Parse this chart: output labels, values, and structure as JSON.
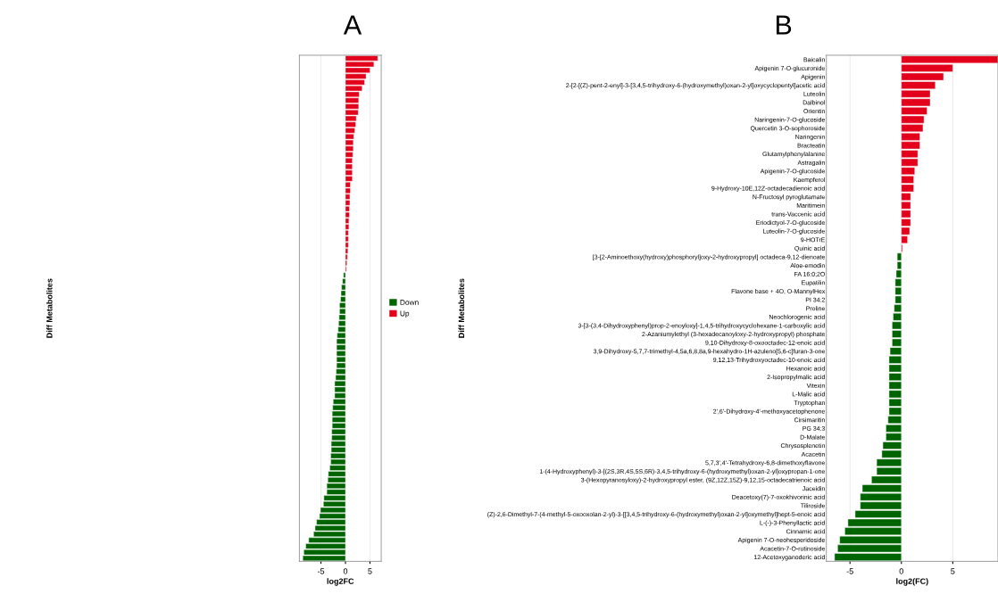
{
  "chart_data": [
    {
      "type": "bar",
      "orientation": "horizontal",
      "title": "A",
      "xlabel": "log2FC",
      "ylabel": "Diff Metabolites",
      "xlim": [
        -9.4,
        7.3
      ],
      "xticks": [
        -5,
        0,
        5
      ],
      "grid": "x",
      "legend": "right",
      "categories": [
        null,
        null,
        null,
        null,
        null,
        null,
        null,
        null,
        null,
        null,
        null,
        null,
        null,
        null,
        null,
        null,
        null,
        null,
        null,
        null,
        null,
        null,
        null,
        null,
        null,
        null,
        null,
        null,
        null,
        null,
        null,
        null,
        null,
        null,
        null,
        null,
        null,
        null,
        null,
        null,
        null,
        null,
        null,
        null,
        null,
        null,
        null,
        null,
        null,
        null,
        null,
        null,
        null,
        null,
        null,
        null,
        null,
        null,
        null,
        null,
        null,
        null,
        null,
        null,
        null,
        null,
        null,
        null,
        null,
        null,
        null,
        null,
        null,
        null,
        null,
        null,
        null,
        null,
        null,
        null,
        null,
        null,
        null,
        null
      ],
      "series": [
        {
          "name": "Down",
          "color": "#006400",
          "values": [
            null,
            null,
            null,
            null,
            null,
            null,
            null,
            null,
            null,
            null,
            null,
            null,
            null,
            null,
            null,
            null,
            null,
            null,
            null,
            null,
            null,
            null,
            null,
            null,
            null,
            null,
            null,
            null,
            null,
            null,
            null,
            null,
            null,
            null,
            null,
            null,
            -0.4,
            -0.6,
            -0.8,
            -0.9,
            -1.0,
            -1.2,
            -1.2,
            -1.3,
            -1.4,
            -1.5,
            -1.7,
            -1.8,
            -1.8,
            -1.8,
            -1.8,
            -1.8,
            -1.9,
            -2.0,
            -2.2,
            -2.2,
            -2.2,
            -2.5,
            -2.6,
            -2.7,
            -2.7,
            -2.7,
            -2.8,
            -2.8,
            -2.9,
            -2.9,
            -3.0,
            -3.0,
            -3.2,
            -3.5,
            -3.6,
            -3.8,
            -3.8,
            -4.4,
            -4.5,
            -5.1,
            -5.3,
            -5.9,
            -6.2,
            -6.5,
            -7.5,
            -8.1,
            -8.5,
            -8.7
          ]
        },
        {
          "name": "Up",
          "color": "#e3001b",
          "values": [
            6.6,
            5.8,
            5.0,
            4.2,
            3.9,
            3.4,
            2.8,
            2.7,
            2.7,
            2.6,
            2.2,
            2.1,
            1.9,
            1.7,
            1.6,
            1.6,
            1.5,
            1.4,
            1.4,
            1.4,
            1.4,
            1.0,
            1.0,
            0.9,
            0.9,
            0.8,
            0.8,
            0.7,
            0.7,
            0.6,
            0.6,
            0.6,
            0.5,
            0.4,
            0.3,
            0.2,
            null,
            null,
            null,
            null,
            null,
            null,
            null,
            null,
            null,
            null,
            null,
            null,
            null,
            null,
            null,
            null,
            null,
            null,
            null,
            null,
            null,
            null,
            null,
            null,
            null,
            null,
            null,
            null,
            null,
            null,
            null,
            null,
            null,
            null,
            null,
            null,
            null,
            null,
            null,
            null,
            null,
            null,
            null,
            null,
            null,
            null,
            null,
            null
          ]
        }
      ]
    },
    {
      "type": "bar",
      "orientation": "horizontal",
      "title": "B",
      "xlabel": "log2(FC)",
      "ylabel": "Diff Metabolites",
      "xlim": [
        -7.3,
        9.4
      ],
      "xticks": [
        -5,
        0,
        5
      ],
      "grid": "x",
      "categories": [
        "Baicalin",
        "Apigenin 7-O-glucuronide",
        "Apigenin",
        "2-[2-[(Z)-pent-2-enyl]-3-[3,4,5-trihydroxy-6-(hydroxymethyl)oxan-2-yl]oxycyclopentyl]acetic acid",
        "Luteolin",
        "Dalbinol",
        "Orientin",
        "Naringenin-7-O-glucoside",
        "Quercetin 3-O-sophoroside",
        "Naringenin",
        "Bracteatin",
        "Glutamylphenylalanine",
        "Astragalin",
        "Apigenin-7-O-glucoside",
        "Kaempferol",
        "9-Hydroxy-10E,12Z-octadecadienoic acid",
        "N-Fructosyl pyroglutamate",
        "Maritimein",
        "trans-Vaccenic acid",
        "Eriodictyol-7-O-glucoside",
        "Luteolin-7-O-glucoside",
        "9-HOTrE",
        "Quinic acid",
        "[3-[2-Aminoethoxy(hydroxy)phosphoryl]oxy-2-hydroxypropyl] octadeca-9,12-dienoate",
        "Aloe-emodin",
        "FA 16:0;2O",
        "Eupatilin",
        "Flavone base + 4O, O-MannylHex",
        "PI 34:2",
        "Proline",
        "Neochlorogenic acid",
        "3-[3-(3,4-Dihydroxyphenyl)prop-2-enoyloxy]-1,4,5-trihydroxycyclohexane-1-carboxylic acid",
        "2-Azaniumylethyl (3-hexadecanoyloxy-2-hydroxypropyl) phosphate",
        "9,10-Dihydroxy-8-oxooctadec-12-enoic acid",
        "3,9-Dihydroxy-5,7,7-trimethyl-4,5a,6,8,8a,9-hexahydro-1H-azuleno[5,6-c]furan-3-one",
        "9,12,13-Trihydroxyoctadec-10-enoic acid",
        "Hexanoic acid",
        "2-Isopropylmalic acid",
        "Vitexin",
        "L-Malic acid",
        "Tryptophan",
        "2',6'-Dihydroxy-4'-methoxyacetophenone",
        "Cirsimaritin",
        "PG 34:3",
        "D-Malate",
        "Chrysosplenetin",
        "Acacetin",
        "5,7,3',4'-Tetrahydroxy-6,8-dimethoxyflavone",
        "1-(4-Hydroxyphenyl)-3-[(2S,3R,4S,5S,6R)-3,4,5-trihydroxy-6-(hydroxymethyl)oxan-2-yl]oxypropan-1-one",
        "3-(Hexopyranosyloxy)-2-hydroxypropyl ester, (9Z,12Z,15Z)-9,12,15-octadecatrienoic acid",
        "Jaceidin",
        "Deacetoxy(7)-7-oxokhivorinic acid",
        "Tiliroside",
        "(Z)-2,6-Dimethyl-7-(4-methyl-5-oxooxolan-2-yl)-3-[[3,4,5-trihydroxy-6-(hydroxymethyl)oxan-2-yl]oxymethyl]hept-5-enoic acid",
        "L-(-)-3-Phenyllactic acid",
        "Cinnamic acid",
        "Apigenin 7-O-neohesperidoside",
        "Acacetin-7-O-rutinoside",
        "12-Acetoxyganoderic acid"
      ],
      "series": [
        {
          "color": "#006400",
          "values": [
            null,
            null,
            null,
            null,
            null,
            null,
            null,
            null,
            null,
            null,
            null,
            null,
            null,
            null,
            null,
            null,
            null,
            null,
            null,
            null,
            null,
            null,
            null,
            -0.4,
            -0.4,
            -0.5,
            -0.6,
            -0.6,
            -0.6,
            -0.7,
            -0.8,
            -0.9,
            -0.9,
            -0.9,
            -1.1,
            -1.2,
            -1.2,
            -1.2,
            -1.2,
            -1.2,
            -1.2,
            -1.2,
            -1.3,
            -1.5,
            -1.5,
            -1.8,
            -1.9,
            -2.4,
            -2.4,
            -2.9,
            -3.8,
            -4.0,
            -4.0,
            -4.5,
            -5.2,
            -5.5,
            -6.0,
            -6.2,
            -6.5
          ]
        },
        {
          "color": "#e3001b",
          "values": [
            9.4,
            5.0,
            4.1,
            3.3,
            2.8,
            2.8,
            2.5,
            2.2,
            2.1,
            1.8,
            1.8,
            1.6,
            1.6,
            1.3,
            1.2,
            1.2,
            0.9,
            0.9,
            0.9,
            0.9,
            0.8,
            0.6,
            0.1,
            null,
            null,
            null,
            null,
            null,
            null,
            null,
            null,
            null,
            null,
            null,
            null,
            null,
            null,
            null,
            null,
            null,
            null,
            null,
            null,
            null,
            null,
            null,
            null,
            null,
            null,
            null,
            null,
            null,
            null,
            null,
            null,
            null,
            null,
            null,
            null
          ]
        }
      ]
    }
  ]
}
